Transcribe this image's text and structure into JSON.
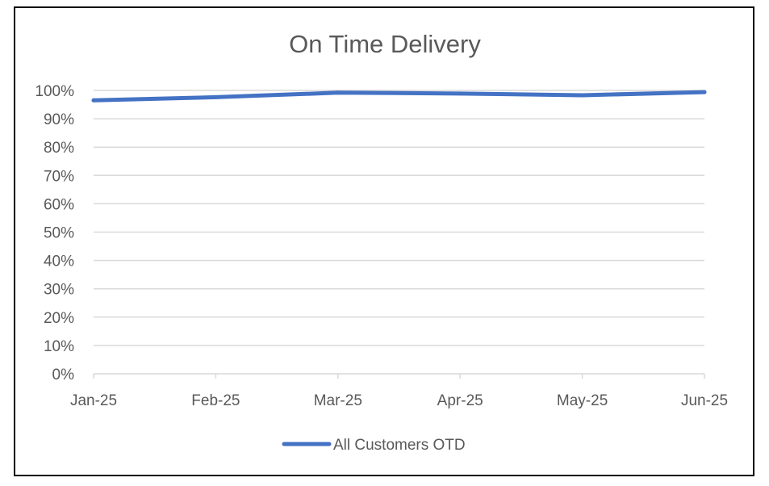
{
  "chart_data": {
    "type": "line",
    "title": "On Time Delivery",
    "xlabel": "",
    "ylabel": "",
    "categories": [
      "Jan-25",
      "Feb-25",
      "Mar-25",
      "Apr-25",
      "May-25",
      "Jun-25"
    ],
    "y_tick_labels": [
      "0%",
      "10%",
      "20%",
      "30%",
      "40%",
      "50%",
      "60%",
      "70%",
      "80%",
      "90%",
      "100%"
    ],
    "ylim": [
      0,
      100
    ],
    "y_unit": "%",
    "grid": true,
    "legend_position": "bottom",
    "series": [
      {
        "name": "All Customers OTD",
        "color": "#4472C4",
        "values": [
          96.5,
          97.6,
          99.2,
          98.9,
          98.3,
          99.4
        ]
      }
    ]
  }
}
